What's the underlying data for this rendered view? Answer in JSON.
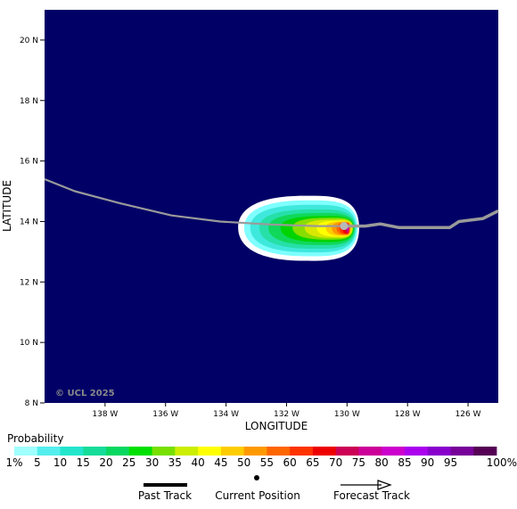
{
  "map": {
    "background_color": "#000066",
    "credit": "© UCL 2025",
    "x_axis_label": "LONGITUDE",
    "y_axis_label": "LATITUDE",
    "lon_range": [
      -140,
      -125
    ],
    "lat_range": [
      8,
      21
    ],
    "lon_ticks": [
      {
        "value": -138,
        "label": "138 W"
      },
      {
        "value": -136,
        "label": "136 W"
      },
      {
        "value": -134,
        "label": "134 W"
      },
      {
        "value": -132,
        "label": "132 W"
      },
      {
        "value": -130,
        "label": "130 W"
      },
      {
        "value": -128,
        "label": "128 W"
      },
      {
        "value": -126,
        "label": "126 W"
      }
    ],
    "lat_ticks": [
      {
        "value": 8,
        "label": "8 N"
      },
      {
        "value": 10,
        "label": "10 N"
      },
      {
        "value": 12,
        "label": "12 N"
      },
      {
        "value": 14,
        "label": "14 N"
      },
      {
        "value": 16,
        "label": "16 N"
      },
      {
        "value": 18,
        "label": "18 N"
      },
      {
        "value": 20,
        "label": "20 N"
      }
    ],
    "track_color": "#9a9a9a",
    "current_position": {
      "lon": -130.1,
      "lat": 13.85
    },
    "track": [
      {
        "lon": -140.0,
        "lat": 15.4
      },
      {
        "lon": -139.0,
        "lat": 15.0
      },
      {
        "lon": -137.5,
        "lat": 14.6
      },
      {
        "lon": -135.8,
        "lat": 14.2
      },
      {
        "lon": -134.2,
        "lat": 14.0
      },
      {
        "lon": -132.5,
        "lat": 13.9
      },
      {
        "lon": -131.0,
        "lat": 13.85
      },
      {
        "lon": -130.1,
        "lat": 13.85
      },
      {
        "lon": -129.4,
        "lat": 13.85
      },
      {
        "lon": -128.9,
        "lat": 13.92
      },
      {
        "lon": -128.3,
        "lat": 13.8
      },
      {
        "lon": -127.5,
        "lat": 13.8
      },
      {
        "lon": -126.6,
        "lat": 13.8
      },
      {
        "lon": -126.3,
        "lat": 14.0
      },
      {
        "lon": -125.5,
        "lat": 14.1
      },
      {
        "lon": -125.0,
        "lat": 14.35
      }
    ],
    "probability_field": {
      "center": {
        "lon": -130.0,
        "lat": 13.8
      },
      "contours": [
        {
          "threshold": 1,
          "color": "#ffffff",
          "west": -133.6,
          "north": 14.85,
          "south": 12.7,
          "east": -129.6
        },
        {
          "threshold": 5,
          "color": "#7fffff",
          "west": -133.4,
          "north": 14.7,
          "south": 12.85,
          "east": -129.65
        },
        {
          "threshold": 10,
          "color": "#3fe8dc",
          "west": -133.2,
          "north": 14.55,
          "south": 12.98,
          "east": -129.7
        },
        {
          "threshold": 15,
          "color": "#26e0a8",
          "west": -132.9,
          "north": 14.4,
          "south": 13.1,
          "east": -129.72
        },
        {
          "threshold": 20,
          "color": "#10d85a",
          "west": -132.6,
          "north": 14.28,
          "south": 13.22,
          "east": -129.75
        },
        {
          "threshold": 25,
          "color": "#00d400",
          "west": -132.2,
          "north": 14.18,
          "south": 13.32,
          "east": -129.78
        },
        {
          "threshold": 30,
          "color": "#88dd00",
          "west": -131.8,
          "north": 14.12,
          "south": 13.4,
          "east": -129.8
        },
        {
          "threshold": 35,
          "color": "#d8e800",
          "west": -131.4,
          "north": 14.06,
          "south": 13.46,
          "east": -129.82
        },
        {
          "threshold": 40,
          "color": "#ffff00",
          "west": -131.0,
          "north": 14.02,
          "south": 13.5,
          "east": -129.85
        },
        {
          "threshold": 45,
          "color": "#ffcc00",
          "west": -130.7,
          "north": 14.0,
          "south": 13.53,
          "east": -129.86
        },
        {
          "threshold": 50,
          "color": "#ff9900",
          "west": -130.5,
          "north": 13.98,
          "south": 13.55,
          "east": -129.88
        },
        {
          "threshold": 55,
          "color": "#ff6600",
          "west": -130.35,
          "north": 13.96,
          "south": 13.57,
          "east": -129.9
        },
        {
          "threshold": 60,
          "color": "#ff3300",
          "west": -130.25,
          "north": 13.94,
          "south": 13.59,
          "east": -129.92
        },
        {
          "threshold": 65,
          "color": "#ee0000",
          "west": -130.15,
          "north": 13.92,
          "south": 13.6,
          "east": -129.94
        },
        {
          "threshold": 70,
          "color": "#cc0066",
          "west": -130.05,
          "north": 13.9,
          "south": 13.62,
          "east": -129.95
        },
        {
          "threshold": 75,
          "color": "#dd00cc",
          "west": -129.98,
          "north": 13.86,
          "south": 13.66,
          "east": -129.96
        },
        {
          "threshold": 80,
          "color": "#aa00ff",
          "west": -129.94,
          "north": 13.82,
          "south": 13.7,
          "east": -129.96
        }
      ]
    }
  },
  "legend": {
    "title": "Probability",
    "bins": [
      {
        "label": "1%",
        "color": "#a0ffff"
      },
      {
        "label": "5",
        "color": "#55eeee"
      },
      {
        "label": "10",
        "color": "#22e6cc"
      },
      {
        "label": "15",
        "color": "#15dd99"
      },
      {
        "label": "20",
        "color": "#08d860"
      },
      {
        "label": "25",
        "color": "#00e000"
      },
      {
        "label": "30",
        "color": "#77e000"
      },
      {
        "label": "35",
        "color": "#ccee00"
      },
      {
        "label": "40",
        "color": "#ffff00"
      },
      {
        "label": "45",
        "color": "#ffcc00"
      },
      {
        "label": "50",
        "color": "#ff9900"
      },
      {
        "label": "55",
        "color": "#ff6600"
      },
      {
        "label": "60",
        "color": "#ff3300"
      },
      {
        "label": "65",
        "color": "#ee0000"
      },
      {
        "label": "70",
        "color": "#cc0055"
      },
      {
        "label": "75",
        "color": "#cc0099"
      },
      {
        "label": "80",
        "color": "#cc00cc"
      },
      {
        "label": "85",
        "color": "#aa00ee"
      },
      {
        "label": "90",
        "color": "#8800cc"
      },
      {
        "label": "95",
        "color": "#770099"
      },
      {
        "label": "100%",
        "color": "#550055"
      }
    ],
    "track_items": [
      {
        "label": "Past Track"
      },
      {
        "label": "Current Position"
      },
      {
        "label": "Forecast Track"
      }
    ]
  }
}
